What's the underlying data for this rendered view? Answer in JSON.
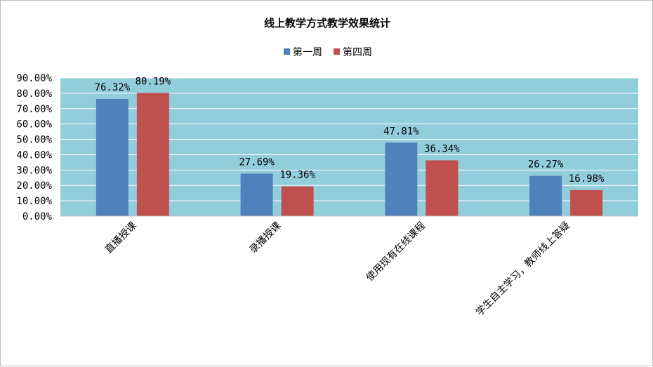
{
  "chart_data": {
    "type": "bar",
    "title": "线上教学方式教学效果统计",
    "categories": [
      "直播授课",
      "录播授课",
      "使用现有在线课程",
      "学生自主学习，教师线上答疑"
    ],
    "series": [
      {
        "name": "第一周",
        "values": [
          76.32,
          27.69,
          47.81,
          26.27
        ],
        "labels": [
          "76.32%",
          "27.69%",
          "47.81%",
          "26.27%"
        ],
        "color": "#4f81bd"
      },
      {
        "name": "第四周",
        "values": [
          80.19,
          19.36,
          36.34,
          16.98
        ],
        "labels": [
          "80.19%",
          "19.36%",
          "36.34%",
          "16.98%"
        ],
        "color": "#c0504d"
      }
    ],
    "y_ticks": [
      "0.00%",
      "10.00%",
      "20.00%",
      "30.00%",
      "40.00%",
      "50.00%",
      "60.00%",
      "70.00%",
      "80.00%",
      "90.00%"
    ],
    "ylim": [
      0,
      90
    ],
    "grid": true,
    "legend_position": "top",
    "plot_background": "#92cddc",
    "grid_color": "#ffffff"
  }
}
